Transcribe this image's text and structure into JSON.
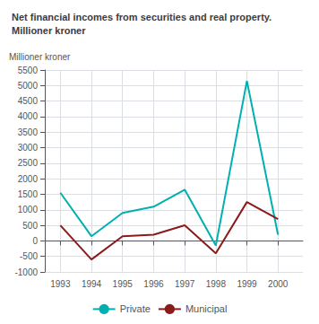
{
  "chart_data": {
    "type": "line",
    "title": "Net financial incomes from securities and real property.\nMillioner kroner",
    "ylabel": "Millioner kroner",
    "x": [
      1993,
      1994,
      1995,
      1996,
      1997,
      1998,
      1999,
      2000
    ],
    "series": [
      {
        "name": "Private",
        "color": "#00B0B0",
        "values": [
          1550,
          150,
          900,
          1100,
          1650,
          -150,
          5150,
          200
        ]
      },
      {
        "name": "Municipal",
        "color": "#8B1A1A",
        "values": [
          500,
          -600,
          150,
          200,
          500,
          -400,
          1250,
          700
        ]
      }
    ],
    "xlim": [
      1992.5,
      2000.8
    ],
    "xticks": [
      1993,
      1994,
      1995,
      1996,
      1997,
      1998,
      1999,
      2000
    ],
    "ylim": [
      -1000,
      5500
    ],
    "yticks": [
      -1000,
      -500,
      0,
      500,
      1000,
      1500,
      2000,
      2500,
      3000,
      3500,
      4000,
      4500,
      5000,
      5500
    ],
    "grid": true,
    "legend": "bottom"
  }
}
